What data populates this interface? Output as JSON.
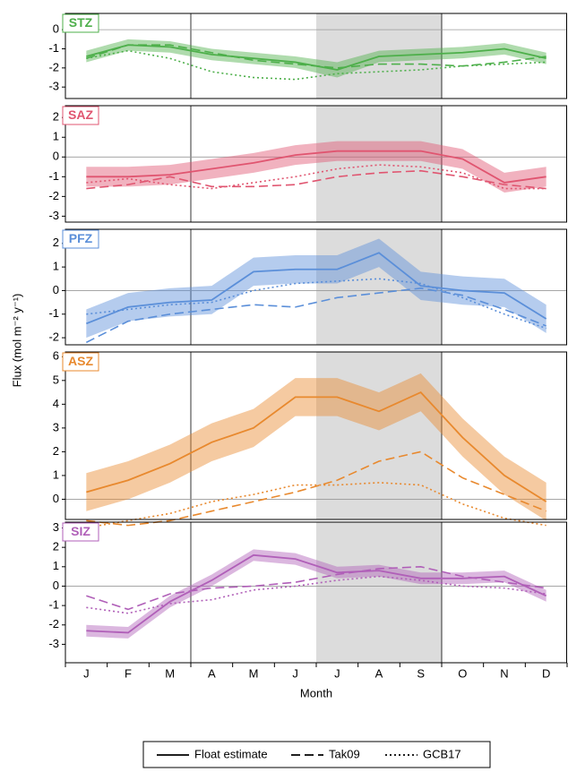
{
  "shared": {
    "y_label": "Flux (mol m⁻² y⁻¹)",
    "x_label": "Month",
    "categories": [
      "J",
      "F",
      "M",
      "A",
      "M",
      "J",
      "J",
      "A",
      "S",
      "O",
      "N",
      "D"
    ],
    "legend": [
      "Float estimate",
      "Tak09",
      "GCB17"
    ]
  },
  "chart_data": [
    {
      "type": "line",
      "title": "STZ",
      "color": "#4daf4a",
      "ylim": [
        -3.6,
        0.85
      ],
      "yticks": [
        0,
        -1,
        -2,
        -3
      ],
      "series": [
        {
          "values": [
            -1.4,
            -0.8,
            -0.9,
            -1.3,
            -1.5,
            -1.7,
            -2.1,
            -1.4,
            -1.3,
            -1.2,
            -1.0,
            -1.5
          ],
          "lower": [
            -1.7,
            -1.1,
            -1.2,
            -1.6,
            -1.8,
            -2.0,
            -2.5,
            -1.7,
            -1.6,
            -1.5,
            -1.3,
            -1.8
          ],
          "upper": [
            -1.1,
            -0.5,
            -0.6,
            -1.0,
            -1.2,
            -1.4,
            -1.7,
            -1.1,
            -1.0,
            -0.9,
            -0.7,
            -1.2
          ]
        },
        {
          "values": [
            -1.5,
            -0.8,
            -0.8,
            -1.2,
            -1.6,
            -1.8,
            -2.0,
            -1.8,
            -1.8,
            -1.9,
            -1.7,
            -1.4
          ]
        },
        {
          "values": [
            -1.5,
            -1.1,
            -1.5,
            -2.2,
            -2.5,
            -2.6,
            -2.3,
            -2.2,
            -2.1,
            -1.9,
            -1.8,
            -1.7
          ]
        }
      ]
    },
    {
      "type": "line",
      "title": "SAZ",
      "color": "#e05570",
      "ylim": [
        -3.3,
        2.6
      ],
      "yticks": [
        2,
        1,
        0,
        -1,
        -2,
        -3
      ],
      "series": [
        {
          "values": [
            -1.0,
            -1.0,
            -0.9,
            -0.6,
            -0.3,
            0.1,
            0.3,
            0.3,
            0.3,
            -0.1,
            -1.3,
            -1.0
          ],
          "lower": [
            -1.5,
            -1.5,
            -1.4,
            -1.1,
            -0.8,
            -0.4,
            -0.2,
            -0.2,
            -0.2,
            -0.6,
            -1.8,
            -1.5
          ],
          "upper": [
            -0.5,
            -0.5,
            -0.4,
            -0.1,
            0.2,
            0.6,
            0.8,
            0.8,
            0.8,
            0.4,
            -0.8,
            -0.5
          ]
        },
        {
          "values": [
            -1.6,
            -1.4,
            -1.0,
            -1.5,
            -1.5,
            -1.4,
            -1.0,
            -0.8,
            -0.7,
            -1.0,
            -1.4,
            -1.6
          ]
        },
        {
          "values": [
            -1.3,
            -1.1,
            -1.4,
            -1.6,
            -1.3,
            -1.0,
            -0.6,
            -0.4,
            -0.5,
            -0.8,
            -1.6,
            -1.6
          ]
        }
      ]
    },
    {
      "type": "line",
      "title": "PFZ",
      "color": "#5b8fd9",
      "ylim": [
        -2.3,
        2.6
      ],
      "yticks": [
        2,
        1,
        0,
        -1,
        -2
      ],
      "series": [
        {
          "values": [
            -1.4,
            -0.7,
            -0.5,
            -0.4,
            0.8,
            0.9,
            0.9,
            1.6,
            0.2,
            0.0,
            -0.1,
            -1.2
          ],
          "lower": [
            -2.0,
            -1.3,
            -1.1,
            -1.0,
            0.2,
            0.3,
            0.3,
            1.0,
            -0.4,
            -0.6,
            -0.7,
            -1.8
          ],
          "upper": [
            -0.8,
            -0.1,
            0.1,
            0.2,
            1.4,
            1.5,
            1.5,
            2.2,
            0.8,
            0.6,
            0.5,
            -0.6
          ]
        },
        {
          "values": [
            -2.2,
            -1.3,
            -1.0,
            -0.8,
            -0.6,
            -0.7,
            -0.3,
            -0.1,
            0.1,
            -0.2,
            -0.8,
            -1.5
          ]
        },
        {
          "values": [
            -1.0,
            -0.8,
            -0.6,
            -0.5,
            0.0,
            0.3,
            0.4,
            0.5,
            0.3,
            -0.3,
            -1.0,
            -1.6
          ]
        }
      ]
    },
    {
      "type": "line",
      "title": "ASZ",
      "color": "#e8892e",
      "ylim": [
        -0.85,
        6.2
      ],
      "yticks": [
        6,
        5,
        4,
        3,
        2,
        1,
        0
      ],
      "series": [
        {
          "values": [
            0.3,
            0.8,
            1.5,
            2.4,
            3.0,
            4.3,
            4.3,
            3.7,
            4.5,
            2.6,
            1.0,
            -0.1
          ],
          "lower": [
            -0.5,
            0.0,
            0.7,
            1.6,
            2.2,
            3.5,
            3.5,
            2.9,
            3.7,
            1.8,
            0.2,
            -0.9
          ],
          "upper": [
            1.1,
            1.6,
            2.3,
            3.2,
            3.8,
            5.1,
            5.1,
            4.5,
            5.3,
            3.4,
            1.8,
            0.7
          ]
        },
        {
          "values": [
            -0.9,
            -1.1,
            -0.9,
            -0.5,
            -0.1,
            0.3,
            0.8,
            1.6,
            2.0,
            0.9,
            0.2,
            -0.5
          ]
        },
        {
          "values": [
            -1.2,
            -0.9,
            -0.6,
            -0.1,
            0.2,
            0.6,
            0.6,
            0.7,
            0.6,
            -0.2,
            -0.8,
            -1.1
          ]
        }
      ]
    },
    {
      "type": "line",
      "title": "SIZ",
      "color": "#b05fb8",
      "ylim": [
        -3.95,
        3.3
      ],
      "yticks": [
        3,
        2,
        1,
        0,
        -1,
        -2,
        -3
      ],
      "series": [
        {
          "values": [
            -2.3,
            -2.4,
            -0.8,
            0.3,
            1.6,
            1.4,
            0.7,
            0.8,
            0.4,
            0.4,
            0.5,
            -0.5
          ],
          "lower": [
            -2.6,
            -2.7,
            -1.1,
            0.0,
            1.3,
            1.1,
            0.4,
            0.5,
            0.1,
            0.1,
            0.2,
            -0.8
          ],
          "upper": [
            -2.0,
            -2.1,
            -0.5,
            0.6,
            1.9,
            1.7,
            1.0,
            1.1,
            0.7,
            0.7,
            0.8,
            -0.2
          ]
        },
        {
          "values": [
            -0.5,
            -1.2,
            -0.4,
            -0.1,
            0.0,
            0.2,
            0.6,
            0.9,
            1.0,
            0.5,
            0.2,
            -0.1
          ]
        },
        {
          "values": [
            -1.1,
            -1.4,
            -0.9,
            -0.7,
            -0.2,
            0.0,
            0.3,
            0.5,
            0.3,
            0.0,
            -0.1,
            -0.4
          ]
        }
      ]
    }
  ]
}
